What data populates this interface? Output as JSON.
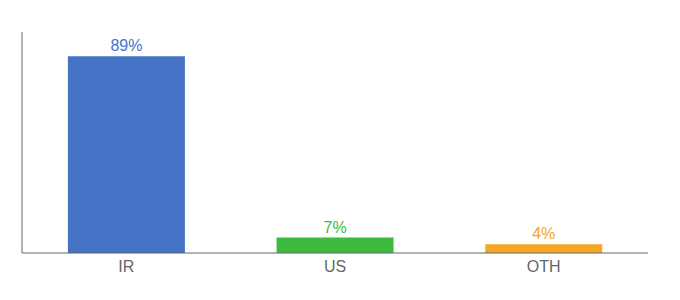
{
  "chart_data": {
    "type": "bar",
    "categories": [
      "IR",
      "US",
      "OTH"
    ],
    "values": [
      89,
      7,
      4
    ],
    "value_labels": [
      "89%",
      "7%",
      "4%"
    ],
    "colors": [
      "#4472c4",
      "#3dbb3d",
      "#f5a623"
    ],
    "ylim": [
      0,
      100
    ],
    "tick_labels": "x",
    "data_labels": true
  }
}
